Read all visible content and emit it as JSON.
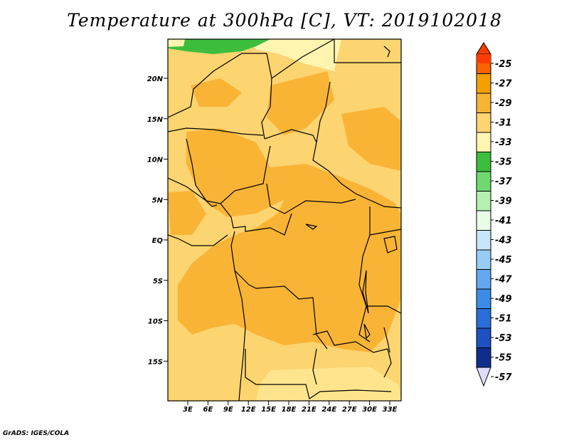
{
  "title": "Temperature at 300hPa [C], VT: 2019102018",
  "credit": "GrADS: IGES/COLA",
  "map": {
    "lat_labels": [
      "20N",
      "15N",
      "10N",
      "5N",
      "EQ",
      "5S",
      "10S",
      "15S"
    ],
    "lon_labels": [
      "3E",
      "6E",
      "9E",
      "12E",
      "15E",
      "18E",
      "21E",
      "24E",
      "27E",
      "30E",
      "33E"
    ]
  },
  "colorbar": {
    "levels": [
      {
        "label": "-25",
        "color": "#fa3c00"
      },
      {
        "label": "-27",
        "color": "#fa6400"
      },
      {
        "label": "-29",
        "color": "#f5a000"
      },
      {
        "label": "-31",
        "color": "#f9b436"
      },
      {
        "label": "-33",
        "color": "#fcd470"
      },
      {
        "label": "-35",
        "color": "#fff5b0"
      },
      {
        "label": "-37",
        "color": "#3cbe3c"
      },
      {
        "label": "-39",
        "color": "#6fd96f"
      },
      {
        "label": "-41",
        "color": "#b5f0b0"
      },
      {
        "label": "-43",
        "color": "#e8fce8"
      },
      {
        "label": "-45",
        "color": "#c8e6fa"
      },
      {
        "label": "-47",
        "color": "#96cdf5"
      },
      {
        "label": "-49",
        "color": "#62a9f0"
      },
      {
        "label": "-51",
        "color": "#3c8ce6"
      },
      {
        "label": "-53",
        "color": "#2a6fd8"
      },
      {
        "label": "-55",
        "color": "#1e50c0"
      },
      {
        "label": "-57",
        "color": "#0f2d8c"
      }
    ],
    "bottom_color": "#dcdcfa"
  }
}
